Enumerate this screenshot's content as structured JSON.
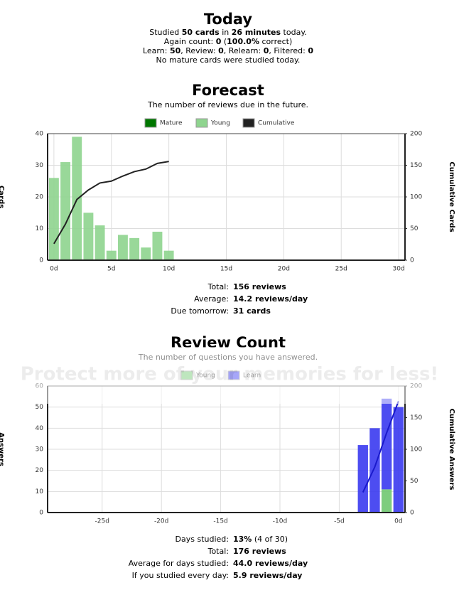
{
  "today": {
    "title": "Today",
    "lines": [
      [
        "Studied ",
        "50 cards",
        " in ",
        "26 minutes",
        " today."
      ],
      [
        "Again count: ",
        "0",
        " (",
        "100.0%",
        " correct)"
      ],
      [
        "Learn: ",
        "50",
        ", Review: ",
        "0",
        ", Relearn: ",
        "0",
        ", Filtered: ",
        "0"
      ],
      [
        "No mature cards were studied today."
      ]
    ]
  },
  "chart_data": [
    {
      "type": "bar",
      "title": "Forecast",
      "subtitle": "The number of reviews due in the future.",
      "ylabel": "Cards",
      "y2label": "Cumulative Cards",
      "x": [
        0,
        1,
        2,
        3,
        4,
        5,
        6,
        7,
        8,
        9,
        10
      ],
      "xlim": [
        -0.55,
        30.55
      ],
      "xticks": [
        {
          "value": 0,
          "label": "0d"
        },
        {
          "value": 5,
          "label": "5d"
        },
        {
          "value": 10,
          "label": "10d"
        },
        {
          "value": 15,
          "label": "15d"
        },
        {
          "value": 20,
          "label": "20d"
        },
        {
          "value": 25,
          "label": "25d"
        },
        {
          "value": 30,
          "label": "30d"
        }
      ],
      "ylim": [
        0,
        40
      ],
      "yticks": [
        0,
        10,
        20,
        30,
        40
      ],
      "y2lim": [
        0,
        200
      ],
      "y2ticks": [
        0,
        50,
        100,
        150,
        200
      ],
      "grid": true,
      "stacked": true,
      "series": [
        {
          "name": "Mature",
          "color": "#007700",
          "values": [
            0,
            0,
            0,
            0,
            0,
            0,
            0,
            0,
            0,
            0,
            0
          ]
        },
        {
          "name": "Young",
          "color": "#8ed48e",
          "values": [
            26,
            31,
            39,
            15,
            11,
            3,
            8,
            7,
            4,
            9,
            3
          ]
        },
        {
          "name": "Cumulative",
          "color": "#222222",
          "type": "line",
          "axis": "y2",
          "values": [
            26,
            57,
            96,
            111,
            122,
            125,
            133,
            140,
            144,
            153,
            156
          ]
        }
      ],
      "stats": [
        {
          "label": "Total:",
          "value": "156 reviews"
        },
        {
          "label": "Average:",
          "value": "14.2 reviews/day"
        },
        {
          "label": "Due tomorrow:",
          "value": "31 cards"
        }
      ]
    },
    {
      "type": "bar",
      "title": "Review Count",
      "subtitle": "The number of questions you have answered.",
      "ylabel": "Answers",
      "y2label": "Cumulative Answers",
      "x": [
        -3,
        -2,
        -1,
        0
      ],
      "xlim": [
        -29.6,
        0.55
      ],
      "xticks": [
        {
          "value": -25,
          "label": "-25d"
        },
        {
          "value": -20,
          "label": "-20d"
        },
        {
          "value": -15,
          "label": "-15d"
        },
        {
          "value": -10,
          "label": "-10d"
        },
        {
          "value": -5,
          "label": "-5d"
        },
        {
          "value": 0,
          "label": "0d"
        }
      ],
      "ylim": [
        0,
        60
      ],
      "yticks": [
        0,
        10,
        20,
        30,
        40,
        50,
        60
      ],
      "y2lim": [
        0,
        200
      ],
      "y2ticks": [
        0,
        50,
        100,
        150,
        200
      ],
      "grid": true,
      "stacked": true,
      "series": [
        {
          "name": "Young",
          "color": "#70c870",
          "values": [
            0,
            0,
            11,
            0
          ]
        },
        {
          "name": "Learn",
          "color": "#3a3af0",
          "values": [
            32,
            40,
            43,
            50
          ]
        },
        {
          "color": "#1a1acc",
          "type": "line",
          "axis": "y2",
          "values": [
            32,
            72,
            126,
            176
          ]
        }
      ],
      "stats": [
        {
          "label": "Days studied:",
          "value": "13%",
          "extra": " (4 of 30)"
        },
        {
          "label": "Total:",
          "value": "176 reviews"
        },
        {
          "label": "Average for days studied:",
          "value": "44.0 reviews/day"
        },
        {
          "label": "If you studied every day:",
          "value": "5.9 reviews/day"
        }
      ]
    }
  ],
  "watermark": "Protect more of your memories for less!"
}
